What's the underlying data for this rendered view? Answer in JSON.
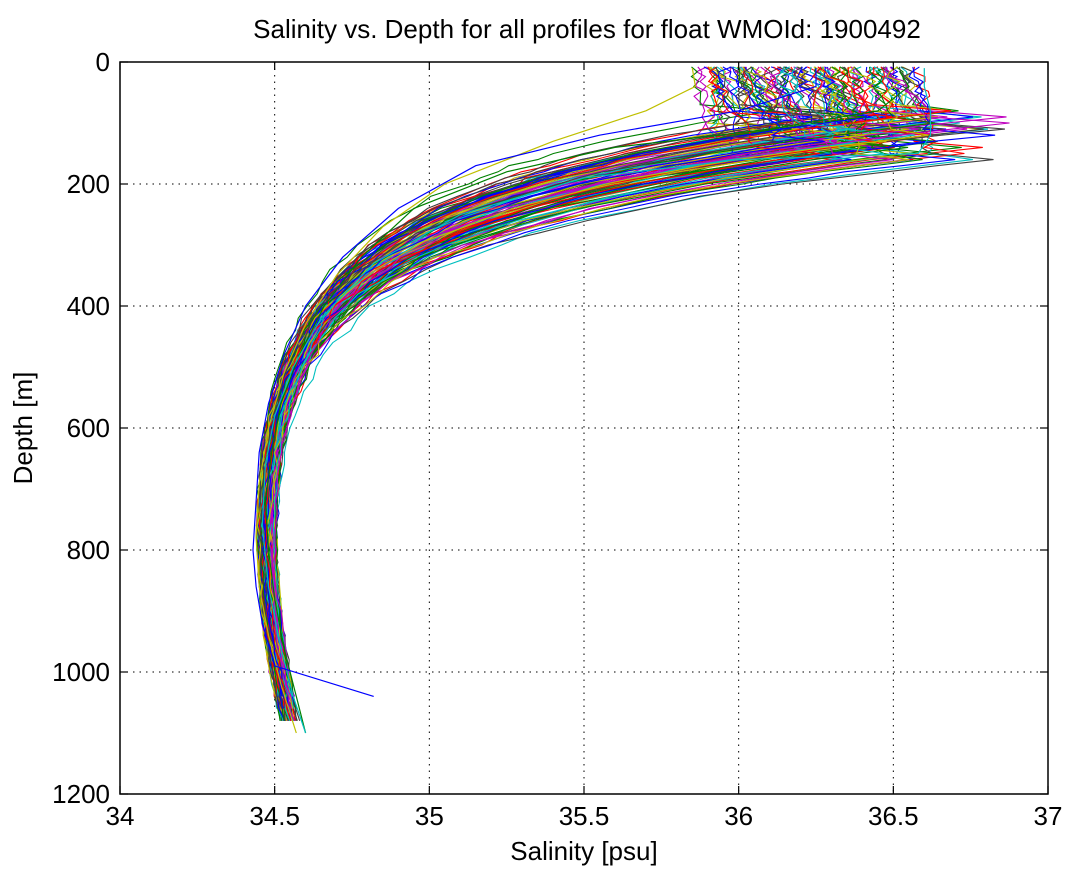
{
  "chart_data": {
    "type": "line",
    "title": "Salinity vs. Depth for all profiles for float WMOId: 1900492",
    "xlabel": "Salinity [psu]",
    "ylabel": "Depth [m]",
    "xlim": [
      34,
      37
    ],
    "ylim": [
      0,
      1200
    ],
    "y_reversed": true,
    "grid": true,
    "legend": "none",
    "x_ticks": [
      "34",
      "34.5",
      "35",
      "35.5",
      "36",
      "36.5",
      "37"
    ],
    "y_ticks": [
      "0",
      "200",
      "400",
      "600",
      "800",
      "1000",
      "1200"
    ],
    "series_colors": [
      "#0000ff",
      "#008000",
      "#ff0000",
      "#00bfbf",
      "#bf00bf",
      "#bfbf00",
      "#404040"
    ],
    "num_series": 120,
    "series": [
      {
        "x": [
          36.52,
          36.55,
          36.45,
          36.1,
          35.6,
          35.25,
          34.95,
          34.78,
          34.66,
          34.58,
          34.52,
          34.49,
          34.47,
          34.48,
          34.5,
          34.53,
          34.57,
          34.6
        ],
        "y": [
          15,
          40,
          80,
          110,
          140,
          180,
          240,
          320,
          400,
          480,
          560,
          640,
          720,
          800,
          880,
          960,
          1040,
          1100
        ]
      },
      {
        "x": [
          36.6,
          36.6,
          36.62,
          36.62,
          36.58,
          36.0,
          35.5,
          35.1,
          34.82,
          34.65,
          34.56,
          34.5,
          34.47,
          34.46,
          34.48,
          34.52,
          34.56,
          34.6
        ],
        "y": [
          10,
          40,
          80,
          120,
          150,
          160,
          190,
          250,
          330,
          420,
          500,
          580,
          660,
          760,
          860,
          960,
          1040,
          1100
        ]
      },
      {
        "x": [
          35.85,
          35.86,
          35.7,
          35.4,
          35.05,
          34.85,
          34.7,
          34.6,
          34.53,
          34.48,
          34.45,
          34.44,
          34.45,
          34.48,
          34.52,
          34.57
        ],
        "y": [
          10,
          40,
          80,
          130,
          200,
          270,
          350,
          430,
          510,
          600,
          690,
          780,
          860,
          940,
          1020,
          1100
        ]
      },
      {
        "x": [
          36.25,
          36.25,
          36.0,
          35.55,
          35.15,
          34.9,
          34.72,
          34.6,
          34.53,
          34.48,
          34.45,
          34.44,
          34.43,
          34.44,
          34.46,
          34.5,
          34.82
        ],
        "y": [
          10,
          40,
          80,
          120,
          170,
          240,
          320,
          400,
          480,
          560,
          640,
          720,
          800,
          860,
          920,
          990,
          1040
        ]
      }
    ]
  }
}
